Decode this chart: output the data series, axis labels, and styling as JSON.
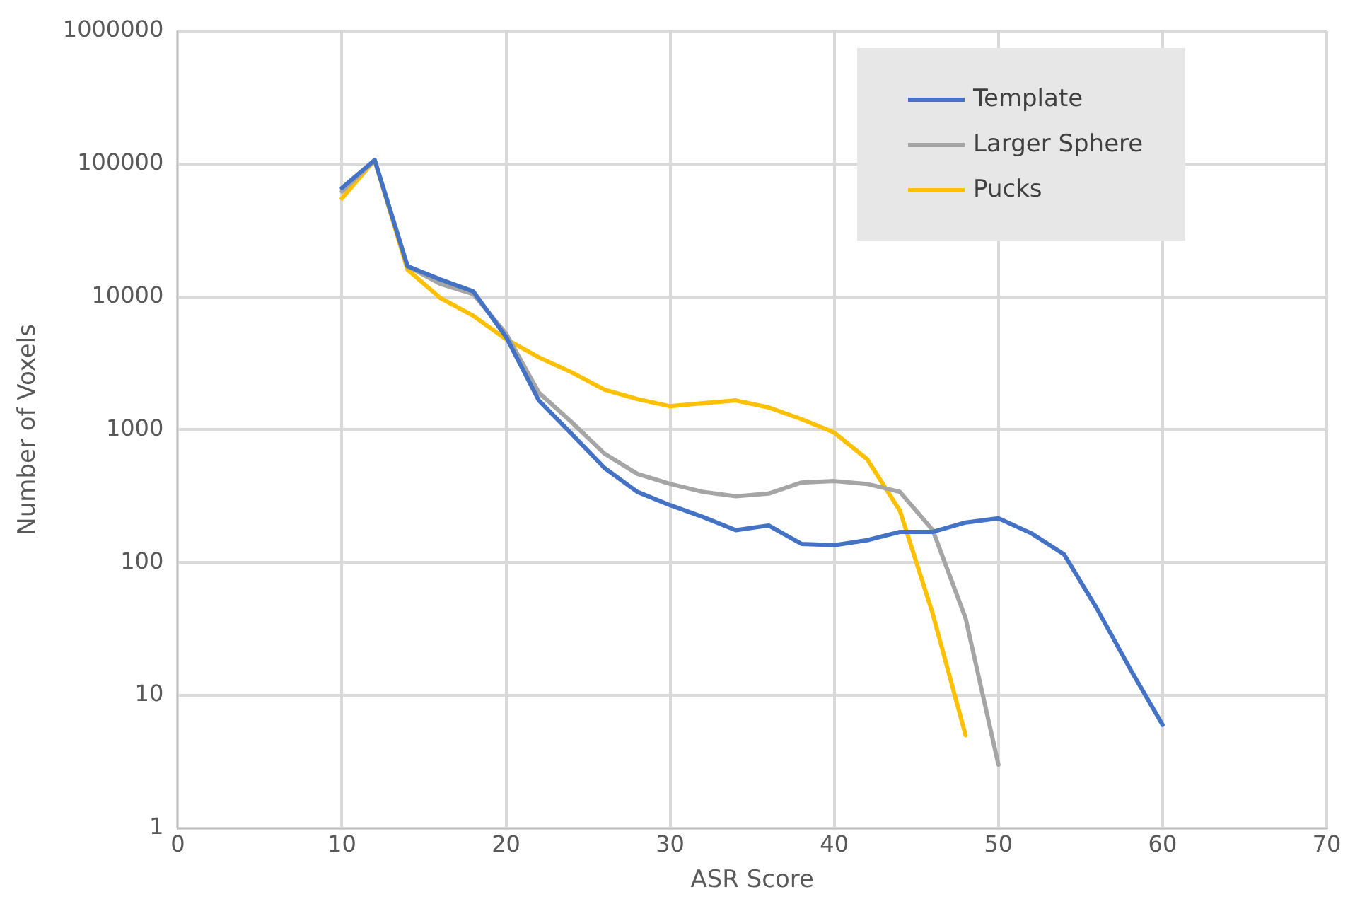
{
  "chart_data": {
    "type": "line",
    "xlabel": "ASR Score",
    "ylabel": "Number of Voxels",
    "log": "y",
    "grid": true,
    "legend": "top right",
    "marker": "none",
    "line_style": "solid",
    "xlim": [
      0,
      70
    ],
    "xticks": [
      0,
      10,
      20,
      30,
      40,
      50,
      60,
      70
    ],
    "ylim": [
      1,
      1000000
    ],
    "yticks": [
      1,
      10,
      100,
      1000,
      10000,
      100000,
      1000000
    ],
    "x": [
      10,
      12,
      14,
      16,
      18,
      20,
      22,
      24,
      26,
      28,
      30,
      32,
      34,
      36,
      38,
      40,
      42,
      44,
      46,
      48,
      50,
      52,
      54,
      56,
      58,
      60
    ],
    "series": [
      {
        "name": "Template",
        "color": "#4472c4",
        "values": [
          66000,
          107000,
          17000,
          13500,
          11000,
          5000,
          1660,
          930,
          515,
          340,
          270,
          220,
          175,
          190,
          138,
          135,
          147,
          170,
          170,
          200,
          215,
          166,
          115,
          45,
          16,
          6
        ]
      },
      {
        "name": "Larger Sphere",
        "color": "#a5a5a5",
        "values": [
          62000,
          107000,
          17000,
          12500,
          10500,
          5300,
          1900,
          1140,
          660,
          465,
          390,
          340,
          315,
          330,
          400,
          410,
          390,
          340,
          175,
          38,
          3,
          null,
          null,
          null,
          null,
          null
        ]
      },
      {
        "name": "Pucks",
        "color": "#ffc000",
        "values": [
          55000,
          107000,
          16000,
          9800,
          7200,
          4800,
          3500,
          2700,
          2000,
          1700,
          1500,
          1580,
          1660,
          1470,
          1200,
          950,
          600,
          245,
          41,
          5,
          null,
          null,
          null,
          null,
          null,
          null
        ]
      }
    ]
  }
}
